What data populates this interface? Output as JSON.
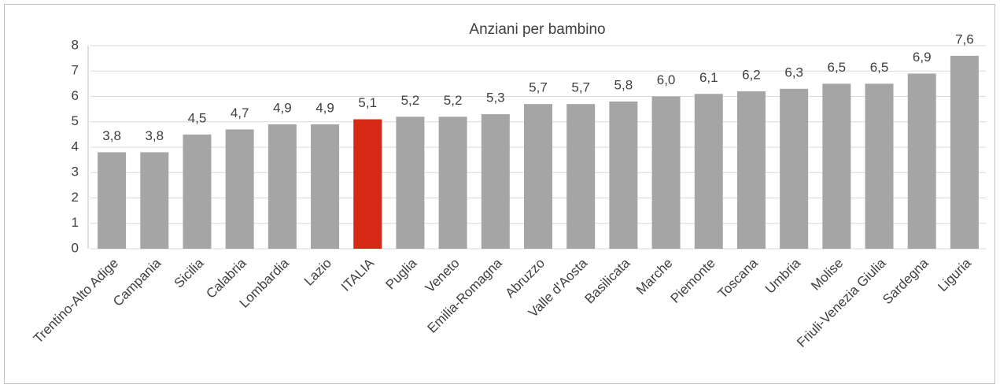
{
  "chart_data": {
    "type": "bar",
    "title": "Anziani per bambino",
    "categories": [
      "Trentino-Alto Adige",
      "Campania",
      "Sicilia",
      "Calabria",
      "Lombardia",
      "Lazio",
      "ITALIA",
      "Puglia",
      "Veneto",
      "Emilia-Romagna",
      "Abruzzo",
      "Valle d'Aosta",
      "Basilicata",
      "Marche",
      "Piemonte",
      "Toscana",
      "Umbria",
      "Molise",
      "Friuli-Venezia Giulia",
      "Sardegna",
      "Liguria"
    ],
    "values": [
      3.8,
      3.8,
      4.5,
      4.7,
      4.9,
      4.9,
      5.1,
      5.2,
      5.2,
      5.3,
      5.7,
      5.7,
      5.8,
      6.0,
      6.1,
      6.2,
      6.3,
      6.5,
      6.5,
      6.9,
      7.6
    ],
    "value_labels": [
      "3,8",
      "3,8",
      "4,5",
      "4,7",
      "4,9",
      "4,9",
      "5,1",
      "5,2",
      "5,2",
      "5,3",
      "5,7",
      "5,7",
      "5,8",
      "6,0",
      "6,1",
      "6,2",
      "6,3",
      "6,5",
      "6,5",
      "6,9",
      "7,6"
    ],
    "colors": [
      "#a5a5a5",
      "#a5a5a5",
      "#a5a5a5",
      "#a5a5a5",
      "#a5a5a5",
      "#a5a5a5",
      "#d52b16",
      "#a5a5a5",
      "#a5a5a5",
      "#a5a5a5",
      "#a5a5a5",
      "#a5a5a5",
      "#a5a5a5",
      "#a5a5a5",
      "#a5a5a5",
      "#a5a5a5",
      "#a5a5a5",
      "#a5a5a5",
      "#a5a5a5",
      "#a5a5a5",
      "#a5a5a5"
    ],
    "ylim": [
      0,
      8
    ],
    "yticks": [
      0,
      1,
      2,
      3,
      4,
      5,
      6,
      7,
      8
    ],
    "grid": true
  }
}
